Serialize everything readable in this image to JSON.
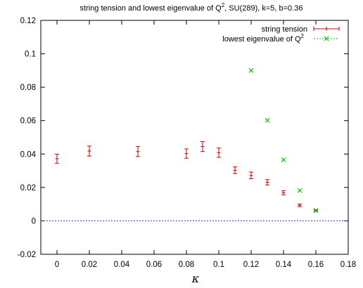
{
  "chart_data": {
    "type": "scatter",
    "title_main": "string tension and lowest eigenvalue of Q",
    "title_sup": "2",
    "title_rest": ",  SU(289),  k=5,  b=0.36",
    "xlabel": "κ",
    "xlim": [
      -0.01,
      0.18
    ],
    "ylim": [
      -0.02,
      0.12
    ],
    "xticks": [
      "0",
      "0.02",
      "0.04",
      "0.06",
      "0.08",
      "0.1",
      "0.12",
      "0.14",
      "0.16",
      "0.18"
    ],
    "xtick_values": [
      0,
      0.02,
      0.04,
      0.06,
      0.08,
      0.1,
      0.12,
      0.14,
      0.16,
      0.18
    ],
    "yticks": [
      "-0.02",
      "0",
      "0.02",
      "0.04",
      "0.06",
      "0.08",
      "0.1",
      "0.12"
    ],
    "ytick_values": [
      -0.02,
      0,
      0.02,
      0.04,
      0.06,
      0.08,
      0.1,
      0.12
    ],
    "zero_line": 0,
    "zero_line_color": "#3333cc",
    "series": [
      {
        "name": "string tension",
        "color": "#cc0000",
        "marker": "plus",
        "x": [
          0,
          0.02,
          0.05,
          0.08,
          0.09,
          0.1,
          0.11,
          0.12,
          0.13,
          0.14,
          0.15,
          0.16
        ],
        "y": [
          0.0372,
          0.0418,
          0.0415,
          0.0403,
          0.0445,
          0.0408,
          0.0303,
          0.0272,
          0.0231,
          0.0168,
          0.0093,
          0.0062
        ],
        "err": [
          0.0027,
          0.003,
          0.003,
          0.0028,
          0.003,
          0.0028,
          0.002,
          0.002,
          0.0016,
          0.0012,
          0.0008,
          0.0005
        ]
      },
      {
        "name": "lowest eigenvalue of Q",
        "name_sup": "2",
        "color": "#00cc00",
        "marker": "cross",
        "x": [
          0.12,
          0.13,
          0.14,
          0.15,
          0.16
        ],
        "y": [
          0.09,
          0.0602,
          0.0365,
          0.0182,
          0.0062
        ]
      }
    ]
  }
}
